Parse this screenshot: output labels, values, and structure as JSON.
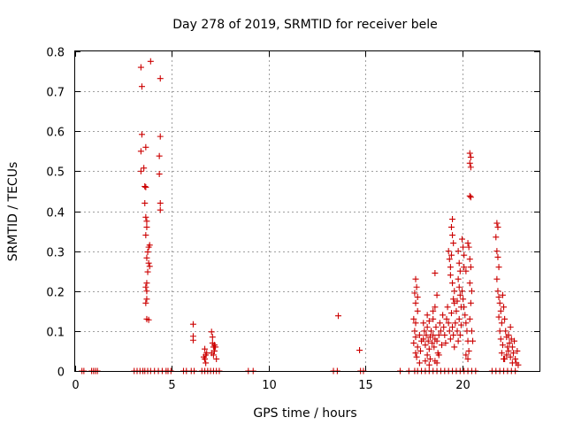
{
  "chart_data": {
    "type": "scatter",
    "title": "Day 278 of 2019, SRMTID for receiver bele",
    "xlabel": "GPS time / hours",
    "ylabel": "SRMTID / TECUs",
    "xlim": [
      0,
      24
    ],
    "ylim": [
      0,
      0.8
    ],
    "xticks": [
      0,
      5,
      10,
      15,
      20
    ],
    "xtick_labels": [
      "0",
      "5",
      "10",
      "15",
      "20"
    ],
    "yticks": [
      0,
      0.1,
      0.2,
      0.3,
      0.4,
      0.5,
      0.6,
      0.7,
      0.8
    ],
    "ytick_labels": [
      "0",
      "0.1",
      "0.2",
      "0.3",
      "0.4",
      "0.5",
      "0.6",
      "0.7",
      "0.8"
    ],
    "grid": true,
    "marker": "+",
    "series": [
      {
        "name": "SRMTID",
        "color": "#cc0000",
        "points": [
          [
            0.35,
            0
          ],
          [
            0.45,
            0
          ],
          [
            0.85,
            0
          ],
          [
            0.95,
            0
          ],
          [
            1.05,
            0
          ],
          [
            1.15,
            0
          ],
          [
            3.05,
            0
          ],
          [
            3.2,
            0
          ],
          [
            3.35,
            0
          ],
          [
            3.5,
            0
          ],
          [
            3.6,
            0
          ],
          [
            3.75,
            0
          ],
          [
            3.9,
            0
          ],
          [
            4.1,
            0
          ],
          [
            4.3,
            0
          ],
          [
            4.5,
            0
          ],
          [
            4.7,
            0
          ],
          [
            4.8,
            0
          ],
          [
            4.95,
            0
          ],
          [
            5.6,
            0
          ],
          [
            5.75,
            0
          ],
          [
            6.0,
            0
          ],
          [
            6.15,
            0
          ],
          [
            6.55,
            0
          ],
          [
            6.7,
            0
          ],
          [
            6.85,
            0
          ],
          [
            7.0,
            0
          ],
          [
            7.15,
            0
          ],
          [
            7.3,
            0
          ],
          [
            7.45,
            0
          ],
          [
            8.95,
            0
          ],
          [
            9.2,
            0
          ],
          [
            13.35,
            0
          ],
          [
            13.55,
            0
          ],
          [
            14.75,
            0
          ],
          [
            14.9,
            0
          ],
          [
            16.8,
            0
          ],
          [
            17.25,
            0
          ],
          [
            17.55,
            0
          ],
          [
            17.7,
            0
          ],
          [
            17.9,
            0
          ],
          [
            18.1,
            0
          ],
          [
            18.3,
            0
          ],
          [
            18.5,
            0
          ],
          [
            18.7,
            0
          ],
          [
            18.9,
            0
          ],
          [
            19.1,
            0
          ],
          [
            19.3,
            0
          ],
          [
            19.5,
            0
          ],
          [
            19.7,
            0
          ],
          [
            19.9,
            0
          ],
          [
            20.1,
            0
          ],
          [
            20.3,
            0
          ],
          [
            20.5,
            0
          ],
          [
            20.7,
            0
          ],
          [
            21.55,
            0
          ],
          [
            21.75,
            0
          ],
          [
            21.95,
            0
          ],
          [
            22.15,
            0
          ],
          [
            22.35,
            0
          ],
          [
            22.55,
            0
          ],
          [
            22.75,
            0
          ],
          [
            3.4,
            0.76
          ],
          [
            3.9,
            0.775
          ],
          [
            3.45,
            0.712
          ],
          [
            4.4,
            0.732
          ],
          [
            3.45,
            0.592
          ],
          [
            4.4,
            0.587
          ],
          [
            3.4,
            0.55
          ],
          [
            3.65,
            0.56
          ],
          [
            3.55,
            0.508
          ],
          [
            3.4,
            0.5
          ],
          [
            4.35,
            0.538
          ],
          [
            4.35,
            0.493
          ],
          [
            3.6,
            0.462
          ],
          [
            3.65,
            0.46
          ],
          [
            3.6,
            0.42
          ],
          [
            4.4,
            0.42
          ],
          [
            4.4,
            0.403
          ],
          [
            3.65,
            0.385
          ],
          [
            3.7,
            0.375
          ],
          [
            3.7,
            0.36
          ],
          [
            3.65,
            0.34
          ],
          [
            3.8,
            0.31
          ],
          [
            3.85,
            0.315
          ],
          [
            3.75,
            0.298
          ],
          [
            3.7,
            0.283
          ],
          [
            3.8,
            0.27
          ],
          [
            3.85,
            0.262
          ],
          [
            3.75,
            0.248
          ],
          [
            3.7,
            0.22
          ],
          [
            3.65,
            0.21
          ],
          [
            3.7,
            0.2
          ],
          [
            3.7,
            0.18
          ],
          [
            3.65,
            0.17
          ],
          [
            3.7,
            0.13
          ],
          [
            3.8,
            0.128
          ],
          [
            6.1,
            0.117
          ],
          [
            6.1,
            0.087
          ],
          [
            6.1,
            0.077
          ],
          [
            6.7,
            0.055
          ],
          [
            6.75,
            0.04
          ],
          [
            6.7,
            0.03
          ],
          [
            6.75,
            0.02
          ],
          [
            6.8,
            0.045
          ],
          [
            6.65,
            0.035
          ],
          [
            7.05,
            0.098
          ],
          [
            7.1,
            0.085
          ],
          [
            7.1,
            0.07
          ],
          [
            7.15,
            0.06
          ],
          [
            7.2,
            0.05
          ],
          [
            7.05,
            0.045
          ],
          [
            7.25,
            0.06
          ],
          [
            7.15,
            0.04
          ],
          [
            7.3,
            0.03
          ],
          [
            7.2,
            0.065
          ],
          [
            13.6,
            0.138
          ],
          [
            14.7,
            0.052
          ],
          [
            17.6,
            0.23
          ],
          [
            17.65,
            0.21
          ],
          [
            17.55,
            0.195
          ],
          [
            17.7,
            0.185
          ],
          [
            17.6,
            0.17
          ],
          [
            17.7,
            0.15
          ],
          [
            17.5,
            0.13
          ],
          [
            17.6,
            0.12
          ],
          [
            17.55,
            0.1
          ],
          [
            17.6,
            0.085
          ],
          [
            17.5,
            0.07
          ],
          [
            17.7,
            0.06
          ],
          [
            17.6,
            0.045
          ],
          [
            17.65,
            0.035
          ],
          [
            17.8,
            0.02
          ],
          [
            17.8,
            0.09
          ],
          [
            17.9,
            0.075
          ],
          [
            17.85,
            0.05
          ],
          [
            18.0,
            0.12
          ],
          [
            18.05,
            0.1
          ],
          [
            18.0,
            0.08
          ],
          [
            18.1,
            0.065
          ],
          [
            18.15,
            0.09
          ],
          [
            18.2,
            0.11
          ],
          [
            18.25,
            0.075
          ],
          [
            18.3,
            0.055
          ],
          [
            18.35,
            0.085
          ],
          [
            18.4,
            0.1
          ],
          [
            18.45,
            0.07
          ],
          [
            18.5,
            0.13
          ],
          [
            18.5,
            0.09
          ],
          [
            18.55,
            0.06
          ],
          [
            18.6,
            0.08
          ],
          [
            18.65,
            0.11
          ],
          [
            18.7,
            0.075
          ],
          [
            18.75,
            0.045
          ],
          [
            18.8,
            0.09
          ],
          [
            18.85,
            0.12
          ],
          [
            18.9,
            0.1
          ],
          [
            18.95,
            0.065
          ],
          [
            18.1,
            0.025
          ],
          [
            18.2,
            0.04
          ],
          [
            18.35,
            0.03
          ],
          [
            18.6,
            0.025
          ],
          [
            18.8,
            0.04
          ],
          [
            18.3,
            0.015
          ],
          [
            18.7,
            0.02
          ],
          [
            18.6,
            0.245
          ],
          [
            18.7,
            0.19
          ],
          [
            18.6,
            0.16
          ],
          [
            18.5,
            0.15
          ],
          [
            18.2,
            0.14
          ],
          [
            18.3,
            0.125
          ],
          [
            19.0,
            0.14
          ],
          [
            19.05,
            0.11
          ],
          [
            19.1,
            0.09
          ],
          [
            19.15,
            0.07
          ],
          [
            19.2,
            0.13
          ],
          [
            19.25,
            0.16
          ],
          [
            19.3,
            0.12
          ],
          [
            19.35,
            0.1
          ],
          [
            19.4,
            0.08
          ],
          [
            19.45,
            0.145
          ],
          [
            19.5,
            0.11
          ],
          [
            19.55,
            0.09
          ],
          [
            19.6,
            0.06
          ],
          [
            19.65,
            0.12
          ],
          [
            19.7,
            0.15
          ],
          [
            19.75,
            0.1
          ],
          [
            19.8,
            0.075
          ],
          [
            19.85,
            0.13
          ],
          [
            19.9,
            0.09
          ],
          [
            19.95,
            0.115
          ],
          [
            19.3,
            0.3
          ],
          [
            19.35,
            0.28
          ],
          [
            19.4,
            0.26
          ],
          [
            19.4,
            0.24
          ],
          [
            19.5,
            0.38
          ],
          [
            19.45,
            0.36
          ],
          [
            19.5,
            0.34
          ],
          [
            19.55,
            0.32
          ],
          [
            19.45,
            0.29
          ],
          [
            19.5,
            0.22
          ],
          [
            19.6,
            0.2
          ],
          [
            19.55,
            0.18
          ],
          [
            19.6,
            0.17
          ],
          [
            19.8,
            0.3
          ],
          [
            19.85,
            0.27
          ],
          [
            19.9,
            0.25
          ],
          [
            19.8,
            0.23
          ],
          [
            19.85,
            0.21
          ],
          [
            19.9,
            0.19
          ],
          [
            19.75,
            0.175
          ],
          [
            19.95,
            0.16
          ],
          [
            20.0,
            0.33
          ],
          [
            20.05,
            0.31
          ],
          [
            20.1,
            0.29
          ],
          [
            20.1,
            0.26
          ],
          [
            20.2,
            0.25
          ],
          [
            20.0,
            0.2
          ],
          [
            20.05,
            0.18
          ],
          [
            20.1,
            0.16
          ],
          [
            20.15,
            0.14
          ],
          [
            20.2,
            0.12
          ],
          [
            20.25,
            0.1
          ],
          [
            20.3,
            0.075
          ],
          [
            20.35,
            0.05
          ],
          [
            20.2,
            0.04
          ],
          [
            20.3,
            0.03
          ],
          [
            20.3,
            0.32
          ],
          [
            20.35,
            0.31
          ],
          [
            20.4,
            0.28
          ],
          [
            20.45,
            0.26
          ],
          [
            20.4,
            0.22
          ],
          [
            20.5,
            0.2
          ],
          [
            20.45,
            0.17
          ],
          [
            20.4,
            0.13
          ],
          [
            20.5,
            0.1
          ],
          [
            20.55,
            0.075
          ],
          [
            20.4,
            0.545
          ],
          [
            20.45,
            0.535
          ],
          [
            20.4,
            0.52
          ],
          [
            20.45,
            0.51
          ],
          [
            20.4,
            0.438
          ],
          [
            20.45,
            0.435
          ],
          [
            21.8,
            0.37
          ],
          [
            21.85,
            0.36
          ],
          [
            21.75,
            0.335
          ],
          [
            21.8,
            0.3
          ],
          [
            21.85,
            0.285
          ],
          [
            21.9,
            0.26
          ],
          [
            21.8,
            0.23
          ],
          [
            21.85,
            0.2
          ],
          [
            21.9,
            0.185
          ],
          [
            21.95,
            0.17
          ],
          [
            22.0,
            0.15
          ],
          [
            21.9,
            0.135
          ],
          [
            22.05,
            0.12
          ],
          [
            21.95,
            0.1
          ],
          [
            22.0,
            0.08
          ],
          [
            22.1,
            0.065
          ],
          [
            22.05,
            0.045
          ],
          [
            22.15,
            0.03
          ],
          [
            22.1,
            0.19
          ],
          [
            22.15,
            0.16
          ],
          [
            22.2,
            0.13
          ],
          [
            22.25,
            0.1
          ],
          [
            22.3,
            0.085
          ],
          [
            22.35,
            0.06
          ],
          [
            22.4,
            0.09
          ],
          [
            22.45,
            0.07
          ],
          [
            22.5,
            0.11
          ],
          [
            22.55,
            0.08
          ],
          [
            22.6,
            0.06
          ],
          [
            22.65,
            0.045
          ],
          [
            22.7,
            0.075
          ],
          [
            22.75,
            0.03
          ],
          [
            22.8,
            0.02
          ],
          [
            22.85,
            0.05
          ],
          [
            22.9,
            0.015
          ],
          [
            22.4,
            0.05
          ],
          [
            22.5,
            0.035
          ],
          [
            22.6,
            0.02
          ],
          [
            22.2,
            0.03
          ],
          [
            22.3,
            0.04
          ]
        ]
      }
    ]
  },
  "palette": {
    "background": "#ffffff",
    "frame": "#000000",
    "grid": "#a0a0a0",
    "marker": "#cc0000"
  }
}
